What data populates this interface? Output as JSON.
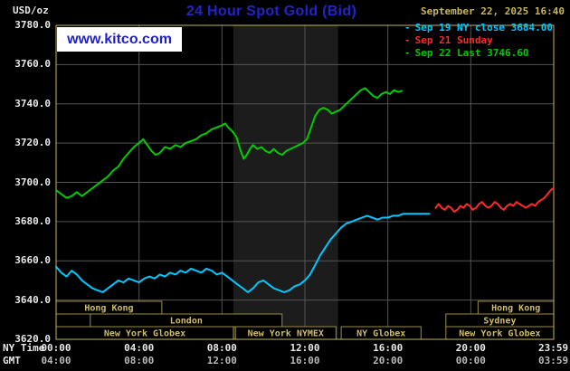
{
  "header": {
    "units": "USD/oz",
    "title": "24 Hour Spot Gold (Bid)",
    "datetime": "September 22, 2025 16:40",
    "watermark": "www.kitco.com",
    "legend_marker": "-",
    "legend": [
      {
        "label": "Sep 19 NY close 3684.00",
        "color": "#00c8ff"
      },
      {
        "label": "Sep 21 Sunday",
        "color": "#ff2a2a"
      },
      {
        "label": "Sep 22 Last 3746.60",
        "color": "#00cc00"
      }
    ]
  },
  "colors": {
    "background": "#000000",
    "title": "#2323cc",
    "watermark_text": "#1f1fcc",
    "datetime": "#c8b560",
    "axis_text": "#e8e8e8",
    "gmt_text": "#b9b9b9",
    "grid": "#555555",
    "plot_border": "#c8b560",
    "session_border": "#9c8c46",
    "session_text": "#cdbb6e",
    "shaded_region": "#1c1c1c"
  },
  "axes": {
    "ny_label": "NY Time",
    "gmt_label": "GMT",
    "y_ticks": [
      "3780.0",
      "3760.0",
      "3740.0",
      "3720.0",
      "3700.0",
      "3680.0",
      "3660.0",
      "3640.0",
      "3620.0"
    ],
    "x_ticks": [
      {
        "h": 0,
        "ny": "00:00",
        "gmt": "04:00"
      },
      {
        "h": 4,
        "ny": "04:00",
        "gmt": "08:00"
      },
      {
        "h": 8,
        "ny": "08:00",
        "gmt": "12:00"
      },
      {
        "h": 12,
        "ny": "12:00",
        "gmt": "16:00"
      },
      {
        "h": 16,
        "ny": "16:00",
        "gmt": "20:00"
      },
      {
        "h": 20,
        "ny": "20:00",
        "gmt": "00:00"
      },
      {
        "h": 23.983,
        "ny": "23:59",
        "gmt": "03:59"
      }
    ]
  },
  "sessions": [
    {
      "label": "Hong Kong",
      "row": 0,
      "start": 0,
      "end": 5.1
    },
    {
      "label": "Hong Kong",
      "row": 0,
      "start": 20.35,
      "end": 24
    },
    {
      "label": "London",
      "row": 1,
      "start": 1.65,
      "end": 10.9
    },
    {
      "label": "Sydney",
      "row": 1,
      "start": 18.8,
      "end": 24
    },
    {
      "label": "New York Globex",
      "row": 2,
      "start": 0,
      "end": 8.55
    },
    {
      "label": "New York NYMEX",
      "row": 2,
      "start": 8.65,
      "end": 13.5
    },
    {
      "label": "NY Globex",
      "row": 2,
      "start": 13.75,
      "end": 17.6
    },
    {
      "label": "New York Globex",
      "row": 2,
      "start": 18.8,
      "end": 24
    }
  ],
  "chart_data": {
    "type": "line",
    "title": "24 Hour Spot Gold (Bid)",
    "xlabel": "NY Time (hours)",
    "ylabel": "USD/oz",
    "x_range": [
      0,
      24
    ],
    "y_range": [
      3620,
      3780
    ],
    "grid": {
      "x_hours": [
        4,
        8,
        12,
        16,
        20
      ],
      "y_values": [
        3640,
        3660,
        3680,
        3700,
        3720,
        3740,
        3760
      ]
    },
    "shaded_region": {
      "start": 8.55,
      "end": 13.6
    },
    "legend_position": "top-right",
    "series": [
      {
        "id": "sep19",
        "name": "Sep 19 NY close",
        "close": 3684.0,
        "color": "#00c8ff",
        "points": [
          [
            0,
            3657
          ],
          [
            0.25,
            3654
          ],
          [
            0.5,
            3652
          ],
          [
            0.75,
            3655
          ],
          [
            1,
            3653
          ],
          [
            1.25,
            3650
          ],
          [
            1.5,
            3648
          ],
          [
            1.75,
            3646
          ],
          [
            2,
            3645
          ],
          [
            2.25,
            3644
          ],
          [
            2.5,
            3646
          ],
          [
            2.75,
            3648
          ],
          [
            3,
            3650
          ],
          [
            3.25,
            3649
          ],
          [
            3.5,
            3651
          ],
          [
            3.75,
            3650
          ],
          [
            4,
            3649
          ],
          [
            4.25,
            3651
          ],
          [
            4.5,
            3652
          ],
          [
            4.75,
            3651
          ],
          [
            5,
            3653
          ],
          [
            5.25,
            3652
          ],
          [
            5.5,
            3654
          ],
          [
            5.75,
            3653
          ],
          [
            6,
            3655
          ],
          [
            6.25,
            3654
          ],
          [
            6.5,
            3656
          ],
          [
            6.75,
            3655
          ],
          [
            7,
            3654
          ],
          [
            7.25,
            3656
          ],
          [
            7.5,
            3655
          ],
          [
            7.75,
            3653
          ],
          [
            8,
            3654
          ],
          [
            8.25,
            3652
          ],
          [
            8.5,
            3650
          ],
          [
            8.75,
            3648
          ],
          [
            9,
            3646
          ],
          [
            9.25,
            3644
          ],
          [
            9.5,
            3646
          ],
          [
            9.75,
            3649
          ],
          [
            10,
            3650
          ],
          [
            10.25,
            3648
          ],
          [
            10.5,
            3646
          ],
          [
            10.75,
            3645
          ],
          [
            11,
            3644
          ],
          [
            11.25,
            3645
          ],
          [
            11.5,
            3647
          ],
          [
            11.75,
            3648
          ],
          [
            12,
            3650
          ],
          [
            12.25,
            3653
          ],
          [
            12.5,
            3658
          ],
          [
            12.75,
            3663
          ],
          [
            13,
            3667
          ],
          [
            13.25,
            3671
          ],
          [
            13.5,
            3674
          ],
          [
            13.75,
            3677
          ],
          [
            14,
            3679
          ],
          [
            14.25,
            3680
          ],
          [
            14.5,
            3681
          ],
          [
            14.75,
            3682
          ],
          [
            15,
            3683
          ],
          [
            15.25,
            3682
          ],
          [
            15.5,
            3681
          ],
          [
            15.75,
            3682
          ],
          [
            16,
            3682
          ],
          [
            16.25,
            3683
          ],
          [
            16.5,
            3683
          ],
          [
            16.75,
            3684
          ],
          [
            17,
            3684
          ],
          [
            17.5,
            3684
          ],
          [
            18,
            3684
          ]
        ]
      },
      {
        "id": "sep21",
        "name": "Sep 21 Sunday",
        "color": "#ff2a2a",
        "points": [
          [
            18.3,
            3687
          ],
          [
            18.45,
            3689
          ],
          [
            18.6,
            3687
          ],
          [
            18.75,
            3686
          ],
          [
            18.9,
            3688
          ],
          [
            19.05,
            3687
          ],
          [
            19.2,
            3685
          ],
          [
            19.35,
            3686
          ],
          [
            19.5,
            3688
          ],
          [
            19.65,
            3687
          ],
          [
            19.8,
            3689
          ],
          [
            19.95,
            3688
          ],
          [
            20.1,
            3686
          ],
          [
            20.25,
            3687
          ],
          [
            20.4,
            3689
          ],
          [
            20.55,
            3690
          ],
          [
            20.7,
            3688
          ],
          [
            20.85,
            3687
          ],
          [
            21,
            3688
          ],
          [
            21.15,
            3690
          ],
          [
            21.3,
            3689
          ],
          [
            21.45,
            3687
          ],
          [
            21.6,
            3686
          ],
          [
            21.75,
            3688
          ],
          [
            21.9,
            3689
          ],
          [
            22.05,
            3688
          ],
          [
            22.2,
            3690
          ],
          [
            22.35,
            3689
          ],
          [
            22.5,
            3688
          ],
          [
            22.65,
            3687
          ],
          [
            22.8,
            3688
          ],
          [
            22.95,
            3689
          ],
          [
            23.1,
            3688
          ],
          [
            23.25,
            3690
          ],
          [
            23.4,
            3691
          ],
          [
            23.55,
            3692
          ],
          [
            23.7,
            3694
          ],
          [
            23.85,
            3696
          ],
          [
            23.98,
            3697
          ]
        ]
      },
      {
        "id": "sep22",
        "name": "Sep 22",
        "last": 3746.6,
        "color": "#00cc00",
        "points": [
          [
            0,
            3696
          ],
          [
            0.25,
            3694
          ],
          [
            0.5,
            3692
          ],
          [
            0.75,
            3693
          ],
          [
            1,
            3695
          ],
          [
            1.25,
            3693
          ],
          [
            1.5,
            3695
          ],
          [
            1.75,
            3697
          ],
          [
            2,
            3699
          ],
          [
            2.25,
            3701
          ],
          [
            2.5,
            3703
          ],
          [
            2.75,
            3706
          ],
          [
            3,
            3708
          ],
          [
            3.25,
            3712
          ],
          [
            3.5,
            3715
          ],
          [
            3.75,
            3718
          ],
          [
            4,
            3720
          ],
          [
            4.2,
            3722
          ],
          [
            4.4,
            3719
          ],
          [
            4.6,
            3716
          ],
          [
            4.8,
            3714
          ],
          [
            5,
            3715
          ],
          [
            5.25,
            3718
          ],
          [
            5.5,
            3717
          ],
          [
            5.75,
            3719
          ],
          [
            6,
            3718
          ],
          [
            6.25,
            3720
          ],
          [
            6.5,
            3721
          ],
          [
            6.75,
            3722
          ],
          [
            7,
            3724
          ],
          [
            7.25,
            3725
          ],
          [
            7.5,
            3727
          ],
          [
            7.75,
            3728
          ],
          [
            8,
            3729
          ],
          [
            8.15,
            3730
          ],
          [
            8.3,
            3728
          ],
          [
            8.5,
            3726
          ],
          [
            8.7,
            3723
          ],
          [
            8.9,
            3716
          ],
          [
            9.05,
            3712
          ],
          [
            9.2,
            3714
          ],
          [
            9.35,
            3717
          ],
          [
            9.5,
            3719
          ],
          [
            9.7,
            3717
          ],
          [
            9.9,
            3718
          ],
          [
            10.1,
            3716
          ],
          [
            10.3,
            3715
          ],
          [
            10.5,
            3717
          ],
          [
            10.7,
            3715
          ],
          [
            10.9,
            3714
          ],
          [
            11.1,
            3716
          ],
          [
            11.3,
            3717
          ],
          [
            11.5,
            3718
          ],
          [
            11.7,
            3719
          ],
          [
            11.9,
            3720
          ],
          [
            12.1,
            3722
          ],
          [
            12.3,
            3728
          ],
          [
            12.5,
            3734
          ],
          [
            12.7,
            3737
          ],
          [
            12.9,
            3738
          ],
          [
            13.1,
            3737
          ],
          [
            13.3,
            3735
          ],
          [
            13.5,
            3736
          ],
          [
            13.7,
            3737
          ],
          [
            13.9,
            3739
          ],
          [
            14.1,
            3741
          ],
          [
            14.3,
            3743
          ],
          [
            14.5,
            3745
          ],
          [
            14.7,
            3747
          ],
          [
            14.9,
            3748
          ],
          [
            15.1,
            3746
          ],
          [
            15.3,
            3744
          ],
          [
            15.5,
            3743
          ],
          [
            15.7,
            3745
          ],
          [
            15.9,
            3746
          ],
          [
            16.1,
            3745
          ],
          [
            16.3,
            3747
          ],
          [
            16.5,
            3746
          ],
          [
            16.67,
            3746.6
          ]
        ]
      }
    ]
  }
}
